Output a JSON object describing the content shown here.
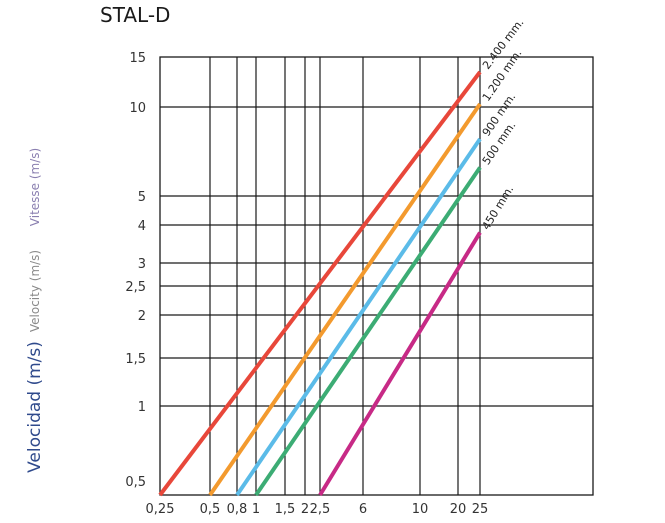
{
  "chart_data": {
    "type": "line",
    "title": "STAL-D",
    "y_axis_labels": [
      "Vitesse (m/s)",
      "Velocity (m/s)",
      "Velocidad (m/s)"
    ],
    "y_axis_label_colors": [
      "#8a7fb0",
      "#8a8a8a",
      "#2f4a8c"
    ],
    "x_ticks": [
      "0,25",
      "0,5",
      "0,8",
      "1",
      "1,5",
      "2",
      "2,5",
      "6",
      "10",
      "20",
      "25"
    ],
    "y_ticks": [
      "15",
      "10",
      "5",
      "4",
      "3",
      "2,5",
      "2",
      "1,5",
      "1",
      "0,5"
    ],
    "series": [
      {
        "name": "2.400 mm.",
        "color": "#e8473a",
        "x": [
          0.25,
          25
        ],
        "y": [
          0.5,
          13.5
        ]
      },
      {
        "name": "1.200 mm.",
        "color": "#f39a2e",
        "x": [
          0.5,
          25
        ],
        "y": [
          0.5,
          10.3
        ]
      },
      {
        "name": "900 mm.",
        "color": "#5bbbe8",
        "x": [
          0.8,
          25
        ],
        "y": [
          0.5,
          8.2
        ]
      },
      {
        "name": "500 mm.",
        "color": "#3cac74",
        "x": [
          1,
          25
        ],
        "y": [
          0.5,
          6.6
        ]
      },
      {
        "name": "450 mm.",
        "color": "#c72a86",
        "x": [
          2.5,
          25
        ],
        "y": [
          0.5,
          3.8
        ]
      }
    ]
  }
}
